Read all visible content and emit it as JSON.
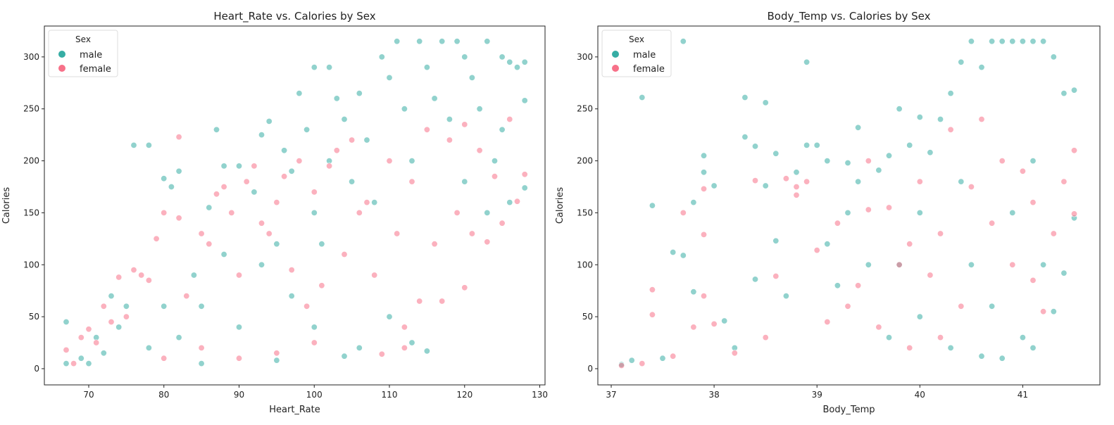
{
  "colors": {
    "male": "#36ada4",
    "female": "#f77189"
  },
  "chart_data": [
    {
      "type": "scatter",
      "title": "Heart_Rate vs. Calories by Sex",
      "xlabel": "Heart_Rate",
      "ylabel": "Calories",
      "xlim": [
        64.1,
        130.7
      ],
      "ylim": [
        -15.6,
        329.7
      ],
      "xticks": [
        70,
        80,
        90,
        100,
        110,
        120,
        130
      ],
      "yticks": [
        0,
        50,
        100,
        150,
        200,
        250,
        300
      ],
      "grid": false,
      "legend": {
        "title": "Sex",
        "placement": "top-left",
        "entries": [
          "male",
          "female"
        ]
      },
      "series": [
        {
          "name": "male",
          "color": "#36ada4",
          "points": [
            [
              67,
              45
            ],
            [
              67,
              5
            ],
            [
              69,
              10
            ],
            [
              70,
              5
            ],
            [
              71,
              30
            ],
            [
              72,
              15
            ],
            [
              73,
              70
            ],
            [
              74,
              40
            ],
            [
              75,
              60
            ],
            [
              76,
              215
            ],
            [
              78,
              215
            ],
            [
              78,
              20
            ],
            [
              80,
              183
            ],
            [
              80,
              60
            ],
            [
              81,
              175
            ],
            [
              82,
              190
            ],
            [
              82,
              30
            ],
            [
              84,
              90
            ],
            [
              85,
              60
            ],
            [
              86,
              155
            ],
            [
              87,
              230
            ],
            [
              88,
              195
            ],
            [
              88,
              110
            ],
            [
              90,
              195
            ],
            [
              90,
              40
            ],
            [
              92,
              170
            ],
            [
              93,
              225
            ],
            [
              94,
              238
            ],
            [
              95,
              120
            ],
            [
              96,
              210
            ],
            [
              97,
              190
            ],
            [
              98,
              265
            ],
            [
              99,
              230
            ],
            [
              100,
              290
            ],
            [
              100,
              150
            ],
            [
              101,
              120
            ],
            [
              102,
              290
            ],
            [
              102,
              200
            ],
            [
              103,
              260
            ],
            [
              104,
              240
            ],
            [
              105,
              180
            ],
            [
              106,
              265
            ],
            [
              107,
              220
            ],
            [
              108,
              160
            ],
            [
              109,
              300
            ],
            [
              110,
              280
            ],
            [
              110,
              50
            ],
            [
              111,
              315
            ],
            [
              112,
              250
            ],
            [
              113,
              200
            ],
            [
              114,
              315
            ],
            [
              115,
              17
            ],
            [
              115,
              290
            ],
            [
              116,
              260
            ],
            [
              117,
              315
            ],
            [
              118,
              240
            ],
            [
              119,
              315
            ],
            [
              120,
              300
            ],
            [
              120,
              180
            ],
            [
              121,
              280
            ],
            [
              122,
              250
            ],
            [
              123,
              315
            ],
            [
              123,
              150
            ],
            [
              125,
              300
            ],
            [
              125,
              230
            ],
            [
              126,
              295
            ],
            [
              126,
              160
            ],
            [
              127,
              290
            ],
            [
              128,
              295
            ],
            [
              128,
              258
            ],
            [
              128,
              174
            ],
            [
              124,
              200
            ],
            [
              113,
              25
            ],
            [
              106,
              20
            ],
            [
              104,
              12
            ],
            [
              100,
              40
            ],
            [
              95,
              8
            ],
            [
              85,
              5
            ],
            [
              93,
              100
            ],
            [
              97,
              70
            ]
          ]
        },
        {
          "name": "female",
          "color": "#f77189",
          "points": [
            [
              67,
              18
            ],
            [
              68,
              5
            ],
            [
              69,
              30
            ],
            [
              70,
              38
            ],
            [
              71,
              25
            ],
            [
              72,
              60
            ],
            [
              73,
              45
            ],
            [
              74,
              88
            ],
            [
              75,
              50
            ],
            [
              76,
              95
            ],
            [
              77,
              90
            ],
            [
              78,
              85
            ],
            [
              79,
              125
            ],
            [
              80,
              150
            ],
            [
              80,
              10
            ],
            [
              82,
              223
            ],
            [
              82,
              145
            ],
            [
              83,
              70
            ],
            [
              85,
              130
            ],
            [
              86,
              120
            ],
            [
              87,
              168
            ],
            [
              88,
              175
            ],
            [
              89,
              150
            ],
            [
              90,
              90
            ],
            [
              91,
              180
            ],
            [
              92,
              195
            ],
            [
              93,
              140
            ],
            [
              94,
              130
            ],
            [
              95,
              160
            ],
            [
              96,
              185
            ],
            [
              97,
              95
            ],
            [
              98,
              200
            ],
            [
              99,
              60
            ],
            [
              100,
              170
            ],
            [
              101,
              80
            ],
            [
              102,
              195
            ],
            [
              103,
              210
            ],
            [
              104,
              110
            ],
            [
              105,
              220
            ],
            [
              106,
              150
            ],
            [
              107,
              160
            ],
            [
              108,
              90
            ],
            [
              109,
              14
            ],
            [
              110,
              200
            ],
            [
              111,
              130
            ],
            [
              112,
              40
            ],
            [
              113,
              180
            ],
            [
              114,
              65
            ],
            [
              115,
              230
            ],
            [
              116,
              120
            ],
            [
              117,
              65
            ],
            [
              118,
              220
            ],
            [
              119,
              150
            ],
            [
              120,
              78
            ],
            [
              120,
              235
            ],
            [
              121,
              130
            ],
            [
              122,
              210
            ],
            [
              123,
              122
            ],
            [
              124,
              185
            ],
            [
              125,
              140
            ],
            [
              126,
              240
            ],
            [
              127,
              161
            ],
            [
              128,
              187
            ],
            [
              112,
              20
            ],
            [
              100,
              25
            ],
            [
              95,
              15
            ],
            [
              90,
              10
            ],
            [
              85,
              20
            ]
          ]
        }
      ]
    },
    {
      "type": "scatter",
      "title": "Body_Temp vs. Calories by Sex",
      "xlabel": "Body_Temp",
      "ylabel": "Calories",
      "xlim": [
        36.87,
        41.75
      ],
      "ylim": [
        -15.6,
        329.7
      ],
      "xticks": [
        37,
        38,
        39,
        40,
        41
      ],
      "yticks": [
        0,
        50,
        100,
        150,
        200,
        250,
        300
      ],
      "grid": false,
      "legend": {
        "title": "Sex",
        "placement": "top-left",
        "entries": [
          "male",
          "female"
        ]
      },
      "series": [
        {
          "name": "male",
          "color": "#36ada4",
          "points": [
            [
              37.1,
              4
            ],
            [
              37.2,
              8
            ],
            [
              37.3,
              261
            ],
            [
              37.4,
              157
            ],
            [
              37.5,
              10
            ],
            [
              37.6,
              112
            ],
            [
              37.7,
              315
            ],
            [
              37.7,
              109
            ],
            [
              37.8,
              160
            ],
            [
              37.8,
              74
            ],
            [
              37.9,
              205
            ],
            [
              37.9,
              189
            ],
            [
              38.0,
              176
            ],
            [
              38.1,
              46
            ],
            [
              38.2,
              20
            ],
            [
              38.3,
              261
            ],
            [
              38.3,
              223
            ],
            [
              38.4,
              214
            ],
            [
              38.4,
              86
            ],
            [
              38.5,
              256
            ],
            [
              38.5,
              176
            ],
            [
              38.6,
              207
            ],
            [
              38.6,
              123
            ],
            [
              38.7,
              70
            ],
            [
              38.8,
              189
            ],
            [
              38.9,
              295
            ],
            [
              38.9,
              215
            ],
            [
              39.0,
              215
            ],
            [
              39.1,
              200
            ],
            [
              39.1,
              120
            ],
            [
              39.2,
              80
            ],
            [
              39.3,
              198
            ],
            [
              39.3,
              150
            ],
            [
              39.4,
              232
            ],
            [
              39.4,
              180
            ],
            [
              39.5,
              100
            ],
            [
              39.6,
              191
            ],
            [
              39.7,
              205
            ],
            [
              39.8,
              250
            ],
            [
              39.8,
              100
            ],
            [
              39.9,
              215
            ],
            [
              40.0,
              242
            ],
            [
              40.0,
              50
            ],
            [
              40.1,
              208
            ],
            [
              40.2,
              240
            ],
            [
              40.3,
              265
            ],
            [
              40.3,
              20
            ],
            [
              40.4,
              295
            ],
            [
              40.5,
              315
            ],
            [
              40.5,
              100
            ],
            [
              40.6,
              290
            ],
            [
              40.6,
              12
            ],
            [
              40.7,
              315
            ],
            [
              40.7,
              60
            ],
            [
              40.8,
              315
            ],
            [
              40.8,
              10
            ],
            [
              40.9,
              315
            ],
            [
              40.9,
              150
            ],
            [
              41.0,
              315
            ],
            [
              41.0,
              30
            ],
            [
              41.1,
              315
            ],
            [
              41.1,
              20
            ],
            [
              41.2,
              315
            ],
            [
              41.2,
              100
            ],
            [
              41.3,
              300
            ],
            [
              41.3,
              55
            ],
            [
              41.4,
              265
            ],
            [
              41.4,
              92
            ],
            [
              41.5,
              268
            ],
            [
              41.5,
              145
            ],
            [
              40.0,
              150
            ],
            [
              39.7,
              30
            ],
            [
              40.4,
              180
            ],
            [
              41.1,
              200
            ]
          ]
        },
        {
          "name": "female",
          "color": "#f77189",
          "points": [
            [
              37.1,
              3
            ],
            [
              37.3,
              5
            ],
            [
              37.4,
              76
            ],
            [
              37.4,
              52
            ],
            [
              37.6,
              12
            ],
            [
              37.7,
              150
            ],
            [
              37.8,
              40
            ],
            [
              37.9,
              173
            ],
            [
              37.9,
              129
            ],
            [
              37.9,
              70
            ],
            [
              38.0,
              43
            ],
            [
              38.2,
              15
            ],
            [
              38.4,
              181
            ],
            [
              38.5,
              30
            ],
            [
              38.6,
              89
            ],
            [
              38.7,
              183
            ],
            [
              38.8,
              175
            ],
            [
              38.8,
              167
            ],
            [
              38.9,
              180
            ],
            [
              39.0,
              114
            ],
            [
              39.1,
              45
            ],
            [
              39.2,
              140
            ],
            [
              39.3,
              60
            ],
            [
              39.4,
              80
            ],
            [
              39.5,
              200
            ],
            [
              39.5,
              153
            ],
            [
              39.6,
              40
            ],
            [
              39.7,
              155
            ],
            [
              39.8,
              100
            ],
            [
              39.9,
              120
            ],
            [
              40.0,
              180
            ],
            [
              40.1,
              90
            ],
            [
              40.2,
              130
            ],
            [
              40.3,
              230
            ],
            [
              40.4,
              60
            ],
            [
              40.5,
              175
            ],
            [
              40.6,
              240
            ],
            [
              40.7,
              140
            ],
            [
              40.8,
              200
            ],
            [
              40.9,
              100
            ],
            [
              41.0,
              190
            ],
            [
              41.1,
              160
            ],
            [
              41.2,
              55
            ],
            [
              41.3,
              130
            ],
            [
              41.4,
              180
            ],
            [
              41.5,
              210
            ],
            [
              41.5,
              149
            ],
            [
              40.2,
              30
            ],
            [
              39.9,
              20
            ],
            [
              41.1,
              85
            ]
          ]
        }
      ]
    }
  ]
}
